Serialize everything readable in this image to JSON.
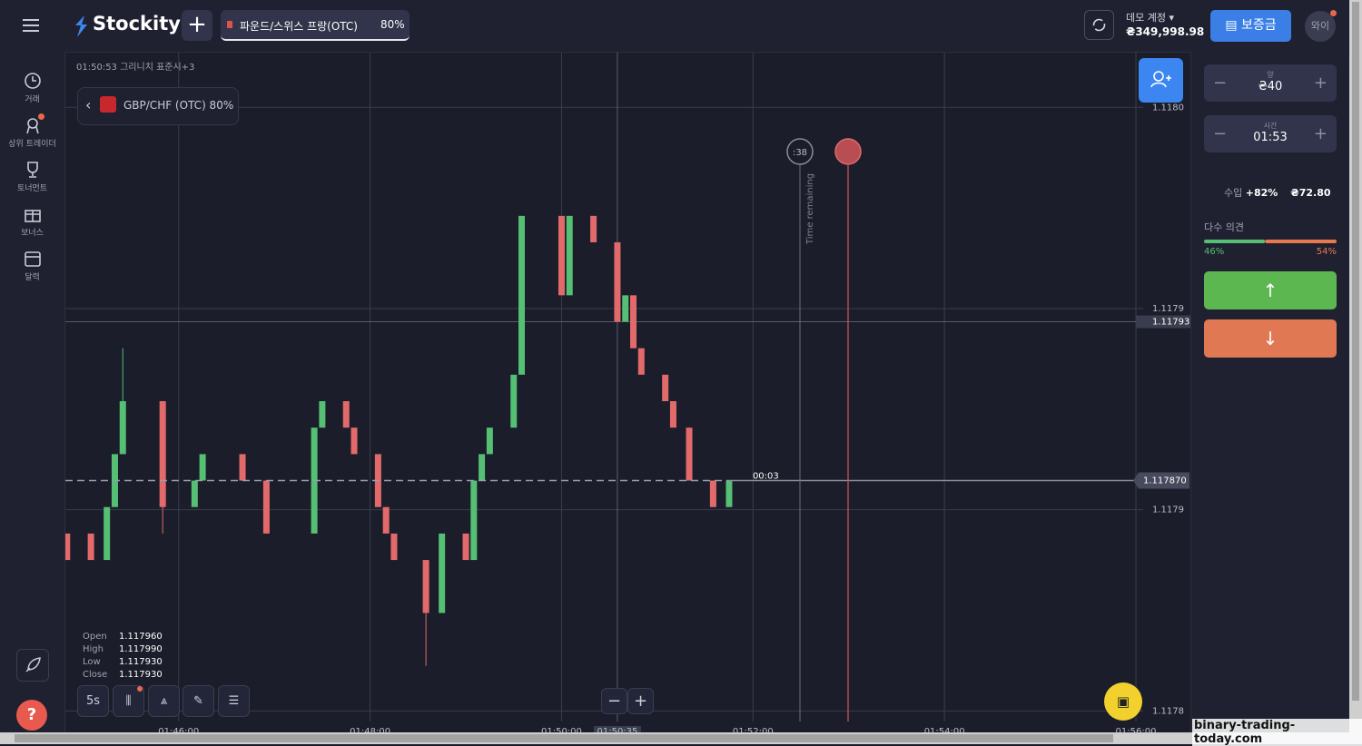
{
  "header": {
    "logo": "Stockity",
    "tab_label": "파운드/스위스 프랑(OTC)",
    "tab_payout": "80%",
    "account_type": "데모 계정",
    "balance": "₴349,998.98",
    "deposit": "보증금",
    "avatar": "와이"
  },
  "sidebar": {
    "items": [
      {
        "label": "거래"
      },
      {
        "label": "상위 트레이더"
      },
      {
        "label": "토너먼트"
      },
      {
        "label": "보너스"
      },
      {
        "label": "달력"
      }
    ]
  },
  "chart_header": {
    "clock": "01:50:53 그리니치 표준시+3",
    "asset": "GBP/CHF (OTC) 80%"
  },
  "ohlc": {
    "rows": [
      {
        "label": "Open",
        "value": "1.117960"
      },
      {
        "label": "High",
        "value": "1.117990"
      },
      {
        "label": "Low",
        "value": "1.117930"
      },
      {
        "label": "Close",
        "value": "1.117930"
      }
    ]
  },
  "toolbar": {
    "timeframe": "5s"
  },
  "chart_data": {
    "type": "candlestick",
    "colors": {
      "up": "#55bf73",
      "down": "#e36a6a"
    },
    "ylim": [
      1.117779,
      1.118032
    ],
    "yticks": [
      {
        "value": 1.118011,
        "label": "1.1180"
      },
      {
        "value": 1.117935,
        "label": "1.1179"
      },
      {
        "value": 1.117859,
        "label": "1.1179"
      },
      {
        "value": 1.117783,
        "label": "1.1178"
      }
    ],
    "xlim": [
      "01:44:49",
      "01:56:00"
    ],
    "xticks": [
      "01:46:00",
      "01:48:00",
      "01:50:00",
      "01:52:00",
      "01:54:00",
      "01:56:00"
    ],
    "candles": [
      {
        "time": "01:44:50",
        "open": 1.11785,
        "close": 1.11784
      },
      {
        "time": "01:45:05",
        "open": 1.11785,
        "close": 1.11784
      },
      {
        "time": "01:45:15",
        "open": 1.11784,
        "close": 1.11786
      },
      {
        "time": "01:45:20",
        "open": 1.11786,
        "close": 1.11788
      },
      {
        "time": "01:45:25",
        "open": 1.11788,
        "close": 1.1179,
        "high": 1.11792,
        "low": 1.11788
      },
      {
        "time": "01:45:50",
        "open": 1.1179,
        "close": 1.11786,
        "high": 1.1179,
        "low": 1.11785
      },
      {
        "time": "01:46:10",
        "open": 1.11786,
        "close": 1.11787
      },
      {
        "time": "01:46:15",
        "open": 1.11787,
        "close": 1.11788
      },
      {
        "time": "01:46:40",
        "open": 1.11788,
        "close": 1.11787
      },
      {
        "time": "01:46:55",
        "open": 1.11787,
        "close": 1.11785
      },
      {
        "time": "01:47:25",
        "open": 1.11785,
        "close": 1.11789
      },
      {
        "time": "01:47:30",
        "open": 1.11789,
        "close": 1.1179
      },
      {
        "time": "01:47:45",
        "open": 1.1179,
        "close": 1.11789
      },
      {
        "time": "01:47:50",
        "open": 1.11789,
        "close": 1.11788
      },
      {
        "time": "01:48:05",
        "open": 1.11788,
        "close": 1.11786
      },
      {
        "time": "01:48:10",
        "open": 1.11786,
        "close": 1.11785
      },
      {
        "time": "01:48:15",
        "open": 1.11785,
        "close": 1.11784
      },
      {
        "time": "01:48:35",
        "open": 1.11784,
        "close": 1.11782,
        "high": 1.11784,
        "low": 1.1178
      },
      {
        "time": "01:48:45",
        "open": 1.11782,
        "close": 1.11785
      },
      {
        "time": "01:49:00",
        "open": 1.11785,
        "close": 1.11784
      },
      {
        "time": "01:49:05",
        "open": 1.11784,
        "close": 1.11787
      },
      {
        "time": "01:49:10",
        "open": 1.11787,
        "close": 1.11788
      },
      {
        "time": "01:49:15",
        "open": 1.11788,
        "close": 1.11789
      },
      {
        "time": "01:49:30",
        "open": 1.11789,
        "close": 1.11791
      },
      {
        "time": "01:49:35",
        "open": 1.11791,
        "close": 1.11797
      },
      {
        "time": "01:50:00",
        "open": 1.11797,
        "close": 1.11794
      },
      {
        "time": "01:50:05",
        "open": 1.11794,
        "close": 1.11797
      },
      {
        "time": "01:50:20",
        "open": 1.11797,
        "close": 1.11796
      },
      {
        "time": "01:50:35",
        "open": 1.11796,
        "close": 1.11793
      },
      {
        "time": "01:50:40",
        "open": 1.11793,
        "close": 1.11794
      },
      {
        "time": "01:50:45",
        "open": 1.11794,
        "close": 1.11792
      },
      {
        "time": "01:50:50",
        "open": 1.11792,
        "close": 1.11791
      },
      {
        "time": "01:51:05",
        "open": 1.11791,
        "close": 1.1179
      },
      {
        "time": "01:51:10",
        "open": 1.1179,
        "close": 1.11789
      },
      {
        "time": "01:51:20",
        "open": 1.11789,
        "close": 1.11787
      },
      {
        "time": "01:51:35",
        "open": 1.11787,
        "close": 1.11786
      },
      {
        "time": "01:51:45",
        "open": 1.11786,
        "close": 1.11787
      }
    ],
    "last_price": {
      "value": 1.11787,
      "label": "1.117870"
    },
    "crosshair_price": {
      "value": 1.11793,
      "label": "1.117930"
    },
    "crosshair_time": "01:50:35",
    "candle_timer": "00:03",
    "countdown": ":38",
    "countdown_caption": "Time remaining"
  },
  "trade_panel": {
    "amount_label": "양",
    "amount": "₴40",
    "time_label": "시간",
    "time": "01:53",
    "income_label": "수입",
    "income_pct": "+82%",
    "income": "₴72.80",
    "sentiment": {
      "label": "다수 의견",
      "values": [
        46,
        54
      ],
      "value_labels": [
        "46%",
        "54%"
      ]
    }
  },
  "watermark": "binary-trading-today.com"
}
